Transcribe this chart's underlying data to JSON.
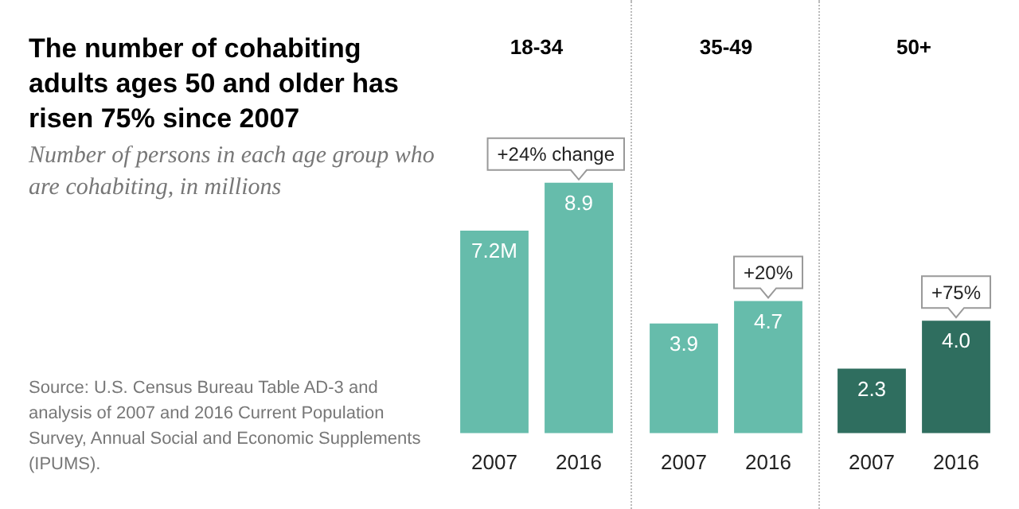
{
  "chart_data": [
    {
      "type": "other",
      "title": "The number of cohabiting adults ages 50 and older has risen 75% since 2007",
      "subtitle": "Number of persons in each age group who are cohabiting, in millions",
      "annotations": [
        "Source: U.S. Census Bureau Table AD-3 and analysis of 2007 and 2016 Current Population Survey, Annual Social and Economic Supplements (IPUMS)."
      ]
    },
    {
      "type": "bar",
      "title": "18-34",
      "categories": [
        "2007",
        "2016"
      ],
      "values": [
        7.2,
        8.9
      ],
      "value_labels": [
        "7.2M",
        "8.9"
      ],
      "color": "#66bcab",
      "annotations": [
        {
          "text": "+24% change",
          "x": "2016",
          "y": 8.9
        }
      ]
    },
    {
      "type": "bar",
      "title": "35-49",
      "categories": [
        "2007",
        "2016"
      ],
      "values": [
        3.9,
        4.7
      ],
      "value_labels": [
        "3.9",
        "4.7"
      ],
      "color": "#66bcab",
      "annotations": [
        {
          "text": "+20%",
          "x": "2016",
          "y": 4.7
        }
      ]
    },
    {
      "type": "bar",
      "title": "50+",
      "categories": [
        "2007",
        "2016"
      ],
      "values": [
        2.3,
        4.0
      ],
      "value_labels": [
        "2.3",
        "4.0"
      ],
      "color": "#2f6e5f",
      "annotations": [
        {
          "text": "+75%",
          "x": "2016",
          "y": 4.0
        }
      ]
    }
  ]
}
